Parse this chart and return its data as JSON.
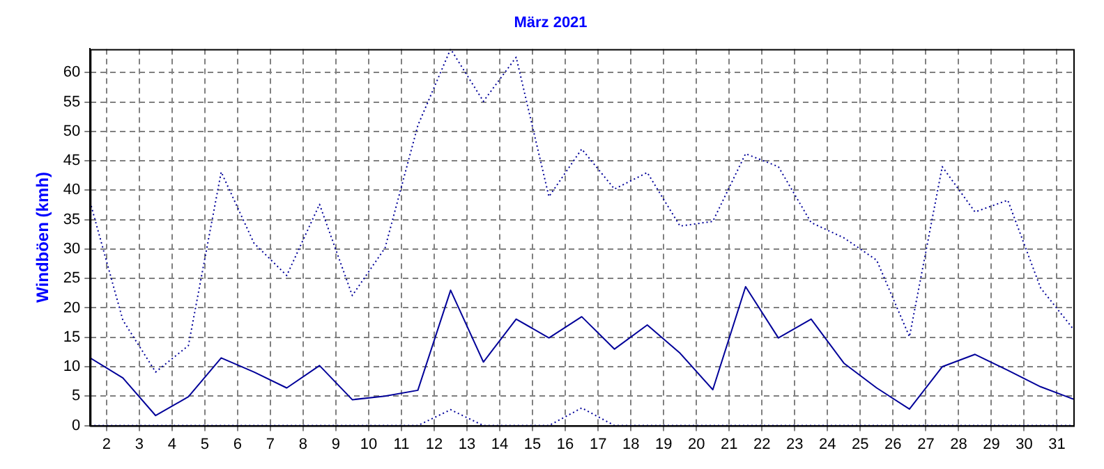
{
  "chart_data": {
    "type": "line",
    "title": "März 2021",
    "ylabel": "Windböen (kmh)",
    "x": [
      1.5,
      2.5,
      3.5,
      4.5,
      5.5,
      6.5,
      7.5,
      8.5,
      9.5,
      10.5,
      11.5,
      12.5,
      13.5,
      14.5,
      15.5,
      16.5,
      17.5,
      18.5,
      19.5,
      20.5,
      21.5,
      22.5,
      23.5,
      24.5,
      25.5,
      26.5,
      27.5,
      28.5,
      29.5,
      30.5,
      31.5
    ],
    "series": [
      {
        "color": "#000099",
        "line_style": "dotted",
        "values": [
          38,
          17.9,
          9.1,
          13.6,
          43.1,
          31,
          25.5,
          37.6,
          22.1,
          30.2,
          51,
          64,
          55.1,
          62.6,
          38.9,
          47,
          40.2,
          43,
          33.9,
          34.7,
          46.2,
          44,
          34.5,
          31.9,
          28.1,
          15.1,
          44,
          36.3,
          38.3,
          23.4,
          16.4
        ]
      },
      {
        "color": "#000099",
        "line_style": "solid",
        "values": [
          11.5,
          8.1,
          1.7,
          4.9,
          11.5,
          9.1,
          6.4,
          10.2,
          4.4,
          5,
          6,
          23,
          10.8,
          18.1,
          14.9,
          18.5,
          13,
          17.1,
          12.3,
          6.1,
          23.6,
          14.9,
          18.1,
          10.6,
          6.4,
          2.8,
          10,
          12.1,
          9.4,
          6.6,
          4.5
        ]
      },
      {
        "color": "#000099",
        "line_style": "dotted",
        "values": [
          0,
          0,
          0,
          0,
          0,
          0,
          0,
          0,
          0,
          0,
          0,
          2.7,
          0,
          0,
          0,
          3,
          0,
          0,
          0,
          0,
          0,
          0,
          0,
          0,
          0,
          0,
          0,
          0,
          0,
          0,
          0
        ]
      }
    ],
    "xlim": [
      1.5,
      31.5
    ],
    "xticks": [
      2,
      3,
      4,
      5,
      6,
      7,
      8,
      9,
      10,
      11,
      12,
      13,
      14,
      15,
      16,
      17,
      18,
      19,
      20,
      21,
      22,
      23,
      24,
      25,
      26,
      27,
      28,
      29,
      30,
      31
    ],
    "ylim": [
      0,
      64
    ],
    "yticks": [
      0,
      5,
      10,
      15,
      20,
      25,
      30,
      35,
      40,
      45,
      50,
      55,
      60
    ],
    "grid": true,
    "legend": false,
    "marker": "none"
  }
}
